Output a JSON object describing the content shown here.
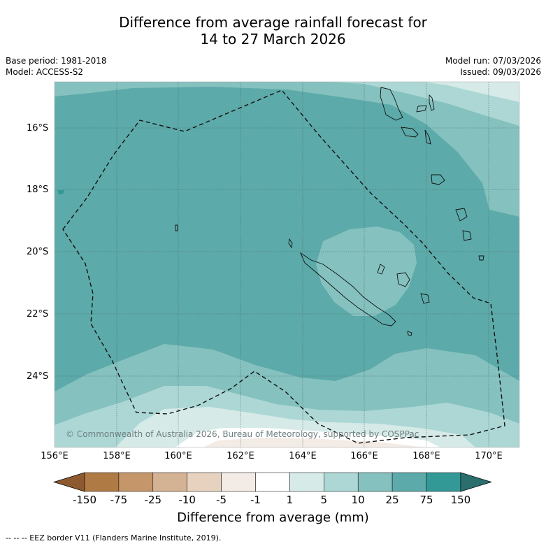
{
  "title_line1": "Difference from average rainfall forecast for",
  "title_line2": "14 to 27 March 2026",
  "base_period": "Base period: 1981-2018",
  "model": "Model: ACCESS-S2",
  "model_run": "Model run: 07/03/2026",
  "issued": "Issued: 09/03/2026",
  "copyright": "© Commonwealth of Australia 2026, Bureau of Meteorology, supported by COSPPac",
  "latitude_labels": [
    "16°S",
    "18°S",
    "20°S",
    "22°S",
    "24°S"
  ],
  "longitude_labels": [
    "156°E",
    "158°E",
    "160°E",
    "162°E",
    "164°E",
    "166°E",
    "168°E",
    "170°E"
  ],
  "colorbar": {
    "title": "Difference from average (mm)",
    "tick_labels": [
      "-150",
      "-75",
      "-25",
      "-10",
      "-5",
      "-1",
      "1",
      "5",
      "10",
      "25",
      "75",
      "150"
    ],
    "colors": [
      "#8c5a2e",
      "#b07a45",
      "#c4966a",
      "#d4b294",
      "#e6d2bf",
      "#f3ebe5",
      "#ffffff",
      "#d6eae8",
      "#acd7d5",
      "#85c1bf",
      "#5caaa9",
      "#339996",
      "#2a6f6e"
    ]
  },
  "footer": "--  --  -- EEZ border V11 (Flanders Marine Institute, 2019).",
  "legend_items": [
    "EEZ border V11"
  ]
}
